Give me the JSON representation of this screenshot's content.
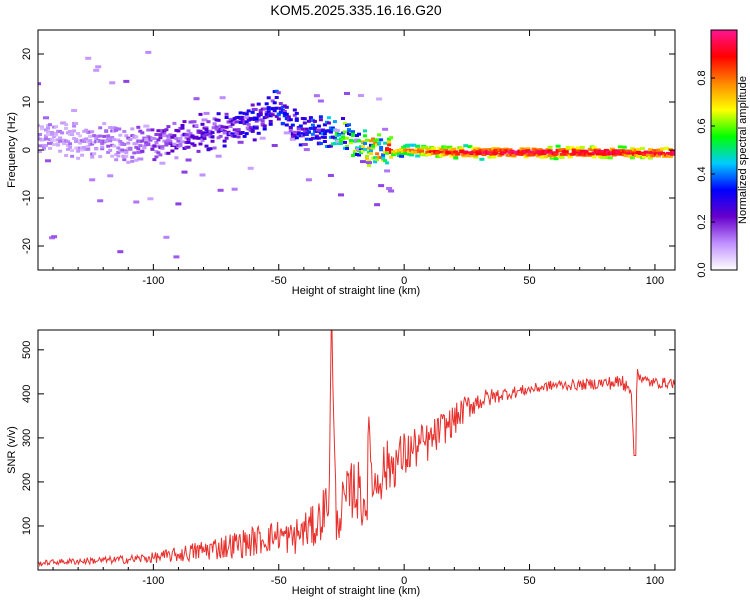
{
  "figure_title": "KOM5.2025.335.16.16.G20",
  "colors": {
    "snr_line": "#e8302c",
    "frequency_line": "#e2231a",
    "frame": "#000000",
    "background": "#ffffff"
  },
  "chart_data": [
    {
      "type": "heatmap",
      "name": "spectrogram",
      "title": "KOM5.2025.335.16.16.G20",
      "xlabel": "Height of straight line (km)",
      "ylabel": "Frequency (Hz)",
      "xlim": [
        -146,
        108
      ],
      "ylim": [
        -25,
        25
      ],
      "xticks": [
        -100,
        -50,
        0,
        50,
        100
      ],
      "xtick_labels": [
        "-100",
        "-50",
        "0",
        "50",
        "100"
      ],
      "yticks": [
        -20,
        -10,
        0,
        10,
        20
      ],
      "ytick_labels": [
        "-20",
        "-10",
        "0",
        "10",
        "20"
      ],
      "ridge_track": {
        "x": [
          -140,
          -130,
          -120,
          -110,
          -100,
          -90,
          -80,
          -70,
          -60,
          -55,
          -50,
          -45,
          -40,
          -35,
          -30,
          -25,
          -20,
          -15,
          -10,
          -5,
          0,
          10,
          20,
          30,
          40,
          50,
          60,
          70,
          80,
          85,
          90,
          95,
          100,
          108
        ],
        "y": [
          2.5,
          2.0,
          1.5,
          1.2,
          1.5,
          2.5,
          3.5,
          4.5,
          6.0,
          7.5,
          9.5,
          5.0,
          4.0,
          3.5,
          3.0,
          2.5,
          1.5,
          0.5,
          0.0,
          -0.5,
          0.0,
          -0.3,
          -0.5,
          -0.5,
          -0.5,
          -0.5,
          -0.5,
          -0.5,
          -0.5,
          -0.5,
          -0.6,
          -0.6,
          -0.6,
          -0.6
        ],
        "amplitude": [
          0.1,
          0.1,
          0.12,
          0.12,
          0.15,
          0.18,
          0.2,
          0.22,
          0.25,
          0.25,
          0.28,
          0.25,
          0.25,
          0.3,
          0.35,
          0.45,
          0.5,
          0.55,
          0.6,
          0.7,
          0.8,
          0.9,
          0.95,
          0.98,
          1.0,
          1.0,
          1.0,
          1.0,
          1.0,
          0.98,
          0.95,
          0.95,
          0.98,
          1.0
        ]
      },
      "colorbar": {
        "label": "Normalized spectral amplitude",
        "range": [
          0,
          1
        ],
        "ticks": [
          0.0,
          0.2,
          0.4,
          0.6,
          0.8
        ],
        "tick_labels": [
          "0.0",
          "0.2",
          "0.4",
          "0.6",
          "0.8"
        ],
        "stops": [
          "#ffffff",
          "#c090ff",
          "#6600cc",
          "#0000ff",
          "#00ccff",
          "#00ff00",
          "#ffff00",
          "#ff8800",
          "#ff0000",
          "#ff1493"
        ]
      }
    },
    {
      "type": "line",
      "name": "snr",
      "title": "",
      "xlabel": "Height of straight line (km)",
      "ylabel": "SNR (v/v)",
      "xlim": [
        -146,
        108
      ],
      "ylim": [
        0,
        545
      ],
      "xticks": [
        -100,
        -50,
        0,
        50,
        100
      ],
      "xtick_labels": [
        "-100",
        "-50",
        "0",
        "50",
        "100"
      ],
      "yticks": [
        100,
        200,
        300,
        400,
        500
      ],
      "ytick_labels": [
        "100",
        "200",
        "300",
        "400",
        "500"
      ],
      "x": [
        -146,
        -140,
        -130,
        -120,
        -110,
        -100,
        -90,
        -80,
        -70,
        -60,
        -50,
        -45,
        -40,
        -35,
        -30,
        -29,
        -27,
        -25,
        -20,
        -15,
        -14,
        -12,
        -10,
        -5,
        0,
        5,
        10,
        15,
        20,
        25,
        30,
        40,
        50,
        60,
        70,
        80,
        85,
        90,
        92,
        93,
        95,
        100,
        108
      ],
      "y": [
        15,
        18,
        20,
        22,
        24,
        28,
        35,
        45,
        55,
        65,
        80,
        70,
        90,
        100,
        160,
        545,
        100,
        140,
        190,
        150,
        300,
        180,
        220,
        240,
        260,
        280,
        290,
        320,
        340,
        370,
        385,
        400,
        410,
        420,
        420,
        425,
        425,
        430,
        260,
        460,
        430,
        425,
        425
      ],
      "noise_amplitude": [
        6,
        6,
        8,
        8,
        10,
        12,
        18,
        25,
        30,
        35,
        35,
        40,
        45,
        50,
        60,
        0,
        40,
        60,
        70,
        80,
        60,
        70,
        70,
        60,
        55,
        50,
        45,
        40,
        35,
        30,
        25,
        15,
        12,
        12,
        12,
        14,
        18,
        30,
        0,
        20,
        16,
        12,
        12
      ]
    }
  ]
}
